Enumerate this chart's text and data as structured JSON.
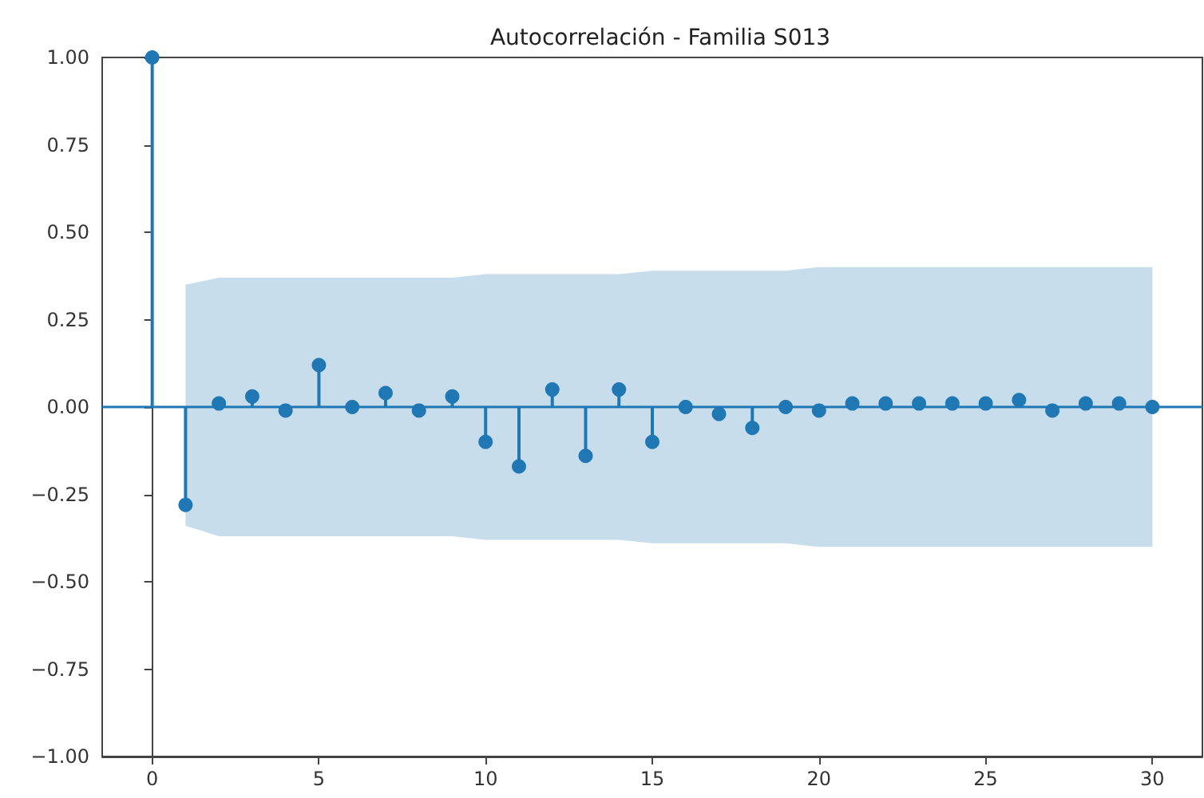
{
  "chart_data": {
    "type": "lollipop",
    "title": "Autocorrelación - Familia S013",
    "x": [
      0,
      1,
      2,
      3,
      4,
      5,
      6,
      7,
      8,
      9,
      10,
      11,
      12,
      13,
      14,
      15,
      16,
      17,
      18,
      19,
      20,
      21,
      22,
      23,
      24,
      25,
      26,
      27,
      28,
      29,
      30
    ],
    "series": [
      {
        "color": "#1f77b4",
        "values": [
          1,
          -0.28,
          0.01,
          0.03,
          -0.01,
          0.12,
          0.0,
          0.04,
          -0.01,
          0.03,
          -0.1,
          -0.17,
          0.05,
          -0.14,
          0.05,
          -0.1,
          0.0,
          -0.02,
          -0.06,
          0.0,
          -0.01,
          0.01,
          0.01,
          0.01,
          0.01,
          0.01,
          0.02,
          -0.01,
          0.01,
          0.01,
          0.0
        ],
        "lower": [
          null,
          -0.34,
          -0.37,
          -0.37,
          -0.37,
          -0.37,
          -0.37,
          -0.37,
          -0.37,
          -0.37,
          -0.38,
          -0.38,
          -0.38,
          -0.38,
          -0.38,
          -0.39,
          -0.39,
          -0.39,
          -0.39,
          -0.39,
          -0.4,
          -0.4,
          -0.4,
          -0.4,
          -0.4,
          -0.4,
          -0.4,
          -0.4,
          -0.4,
          -0.4,
          -0.4
        ],
        "upper": [
          null,
          0.35,
          0.37,
          0.37,
          0.37,
          0.37,
          0.37,
          0.37,
          0.37,
          0.37,
          0.38,
          0.38,
          0.38,
          0.38,
          0.38,
          0.39,
          0.39,
          0.39,
          0.39,
          0.39,
          0.4,
          0.4,
          0.4,
          0.4,
          0.4,
          0.4,
          0.4,
          0.4,
          0.4,
          0.4,
          0.4
        ]
      }
    ],
    "marker": "circle",
    "ref_lines": [
      {
        "axis": "y",
        "value": 0,
        "color": "#1f77b4"
      }
    ],
    "xlim": [
      -1.5,
      31.5
    ],
    "xticks": [
      0,
      5,
      10,
      15,
      20,
      25,
      30
    ],
    "ylim": [
      -1,
      1
    ],
    "yticks": [
      {
        "value": -1,
        "label": "−1.00"
      },
      {
        "value": -0.75,
        "label": "−0.75"
      },
      {
        "value": -0.5,
        "label": "−0.50"
      },
      {
        "value": -0.25,
        "label": "−0.25"
      },
      {
        "value": 0,
        "label": "0.00"
      },
      {
        "value": 0.25,
        "label": "0.25"
      },
      {
        "value": 0.5,
        "label": "0.50"
      },
      {
        "value": 0.75,
        "label": "0.75"
      },
      {
        "value": 1,
        "label": "1.00"
      }
    ],
    "grid": false
  }
}
